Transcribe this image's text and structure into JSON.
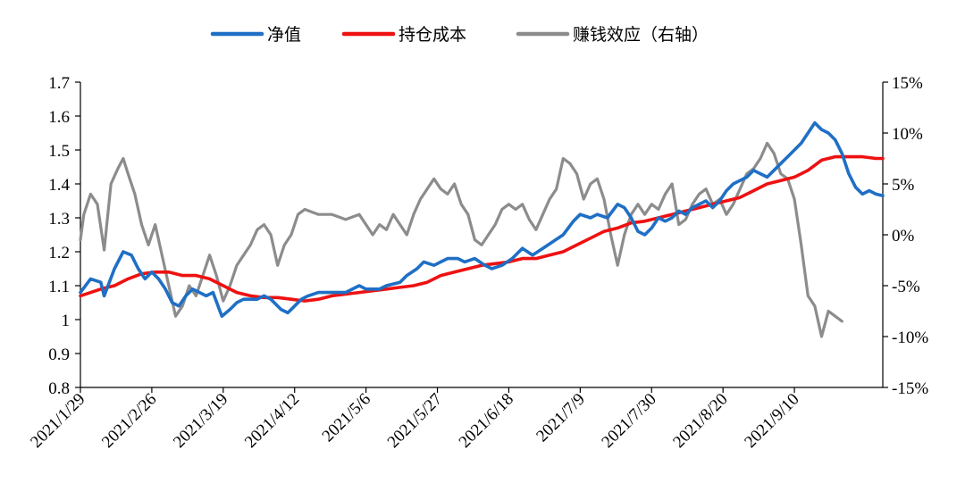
{
  "chart_data": {
    "type": "line",
    "title": "",
    "xlabel": "",
    "ylabel_left": "",
    "ylabel_right": "",
    "x_tick_labels": [
      "2021/1/29",
      "2021/2/26",
      "2021/3/19",
      "2021/4/12",
      "2021/5/6",
      "2021/5/27",
      "2021/6/18",
      "2021/7/9",
      "2021/7/30",
      "2021/8/20",
      "2021/9/10"
    ],
    "y_left": {
      "min": 0.8,
      "max": 1.7,
      "ticks": [
        "0.8",
        "0.9",
        "1",
        "1.1",
        "1.2",
        "1.3",
        "1.4",
        "1.5",
        "1.6",
        "1.7"
      ]
    },
    "y_right": {
      "min": -0.15,
      "max": 0.15,
      "ticks": [
        "-15%",
        "-10%",
        "-5%",
        "0%",
        "5%",
        "10%",
        "15%"
      ]
    },
    "legend_position": "top-center",
    "colors": {
      "nav": "#1f6fc5",
      "cost": "#ee1111",
      "effect": "#8c8c8c"
    },
    "series": [
      {
        "name": "净值",
        "axis": "left",
        "color": "#1f6fc5",
        "points": [
          [
            0,
            1.08
          ],
          [
            1.5,
            1.12
          ],
          [
            3,
            1.11
          ],
          [
            3.5,
            1.07
          ],
          [
            5,
            1.15
          ],
          [
            6.3,
            1.2
          ],
          [
            7.5,
            1.19
          ],
          [
            8.5,
            1.15
          ],
          [
            9.5,
            1.12
          ],
          [
            10.5,
            1.14
          ],
          [
            11.5,
            1.12
          ],
          [
            12.5,
            1.09
          ],
          [
            13.5,
            1.05
          ],
          [
            14.5,
            1.04
          ],
          [
            15.5,
            1.07
          ],
          [
            16.5,
            1.09
          ],
          [
            17.5,
            1.08
          ],
          [
            18.5,
            1.07
          ],
          [
            19.5,
            1.08
          ],
          [
            20.8,
            1.01
          ],
          [
            22,
            1.03
          ],
          [
            23,
            1.05
          ],
          [
            24,
            1.06
          ],
          [
            26,
            1.06
          ],
          [
            27,
            1.07
          ],
          [
            28,
            1.06
          ],
          [
            29.5,
            1.03
          ],
          [
            30.5,
            1.02
          ],
          [
            31.5,
            1.04
          ],
          [
            32.5,
            1.06
          ],
          [
            33.5,
            1.07
          ],
          [
            35,
            1.08
          ],
          [
            37,
            1.08
          ],
          [
            39,
            1.08
          ],
          [
            41,
            1.1
          ],
          [
            42,
            1.09
          ],
          [
            44,
            1.09
          ],
          [
            45,
            1.1
          ],
          [
            47,
            1.11
          ],
          [
            48,
            1.13
          ],
          [
            49.5,
            1.15
          ],
          [
            50.5,
            1.17
          ],
          [
            52,
            1.16
          ],
          [
            53,
            1.17
          ],
          [
            54,
            1.18
          ],
          [
            55.5,
            1.18
          ],
          [
            56.5,
            1.17
          ],
          [
            58,
            1.18
          ],
          [
            59.5,
            1.16
          ],
          [
            60.5,
            1.15
          ],
          [
            62,
            1.16
          ],
          [
            63.5,
            1.18
          ],
          [
            65,
            1.21
          ],
          [
            66.5,
            1.19
          ],
          [
            68,
            1.21
          ],
          [
            69.5,
            1.23
          ],
          [
            71,
            1.25
          ],
          [
            72.5,
            1.29
          ],
          [
            73.5,
            1.31
          ],
          [
            75,
            1.3
          ],
          [
            76,
            1.31
          ],
          [
            77.5,
            1.3
          ],
          [
            79,
            1.34
          ],
          [
            80,
            1.33
          ],
          [
            81,
            1.3
          ],
          [
            82,
            1.26
          ],
          [
            83,
            1.25
          ],
          [
            84,
            1.27
          ],
          [
            85,
            1.3
          ],
          [
            86,
            1.29
          ],
          [
            87,
            1.3
          ],
          [
            88,
            1.32
          ],
          [
            89,
            1.31
          ],
          [
            90,
            1.33
          ],
          [
            91,
            1.34
          ],
          [
            92,
            1.35
          ],
          [
            93,
            1.33
          ],
          [
            94,
            1.35
          ],
          [
            95,
            1.38
          ],
          [
            96,
            1.4
          ],
          [
            97,
            1.41
          ],
          [
            98,
            1.42
          ],
          [
            99,
            1.44
          ],
          [
            100,
            1.43
          ],
          [
            101,
            1.42
          ],
          [
            102,
            1.44
          ],
          [
            103,
            1.46
          ],
          [
            104,
            1.48
          ],
          [
            105,
            1.5
          ],
          [
            106,
            1.52
          ],
          [
            107,
            1.55
          ],
          [
            108,
            1.58
          ],
          [
            109,
            1.56
          ],
          [
            110,
            1.55
          ],
          [
            111,
            1.53
          ],
          [
            112,
            1.49
          ],
          [
            113,
            1.43
          ],
          [
            114,
            1.39
          ],
          [
            115,
            1.37
          ],
          [
            116,
            1.38
          ],
          [
            117,
            1.37
          ],
          [
            118,
            1.365
          ]
        ]
      },
      {
        "name": "持仓成本",
        "axis": "left",
        "color": "#ee1111",
        "points": [
          [
            0,
            1.07
          ],
          [
            3,
            1.09
          ],
          [
            5,
            1.1
          ],
          [
            7,
            1.12
          ],
          [
            9,
            1.135
          ],
          [
            11,
            1.14
          ],
          [
            13,
            1.14
          ],
          [
            15,
            1.13
          ],
          [
            17,
            1.13
          ],
          [
            19,
            1.12
          ],
          [
            21,
            1.1
          ],
          [
            23,
            1.08
          ],
          [
            25,
            1.07
          ],
          [
            27,
            1.065
          ],
          [
            29,
            1.065
          ],
          [
            31,
            1.06
          ],
          [
            33,
            1.055
          ],
          [
            35,
            1.06
          ],
          [
            37,
            1.07
          ],
          [
            39,
            1.075
          ],
          [
            41,
            1.08
          ],
          [
            43,
            1.085
          ],
          [
            45,
            1.09
          ],
          [
            47,
            1.095
          ],
          [
            49,
            1.1
          ],
          [
            51,
            1.11
          ],
          [
            53,
            1.13
          ],
          [
            55,
            1.14
          ],
          [
            57,
            1.15
          ],
          [
            59,
            1.16
          ],
          [
            61,
            1.165
          ],
          [
            63,
            1.17
          ],
          [
            65,
            1.18
          ],
          [
            67,
            1.18
          ],
          [
            69,
            1.19
          ],
          [
            71,
            1.2
          ],
          [
            73,
            1.22
          ],
          [
            75,
            1.24
          ],
          [
            77,
            1.26
          ],
          [
            79,
            1.27
          ],
          [
            81,
            1.285
          ],
          [
            83,
            1.29
          ],
          [
            85,
            1.3
          ],
          [
            87,
            1.31
          ],
          [
            89,
            1.32
          ],
          [
            91,
            1.33
          ],
          [
            93,
            1.34
          ],
          [
            95,
            1.35
          ],
          [
            97,
            1.36
          ],
          [
            99,
            1.38
          ],
          [
            101,
            1.4
          ],
          [
            103,
            1.41
          ],
          [
            105,
            1.42
          ],
          [
            107,
            1.44
          ],
          [
            109,
            1.47
          ],
          [
            111,
            1.48
          ],
          [
            113,
            1.48
          ],
          [
            115,
            1.48
          ],
          [
            117,
            1.475
          ],
          [
            118,
            1.475
          ]
        ]
      },
      {
        "name": "赚钱效应（右轴）",
        "axis": "right",
        "color": "#8c8c8c",
        "points": [
          [
            0,
            -0.005
          ],
          [
            0.5,
            0.02
          ],
          [
            1.5,
            0.04
          ],
          [
            2.5,
            0.03
          ],
          [
            3.5,
            -0.015
          ],
          [
            4.5,
            0.05
          ],
          [
            5.5,
            0.065
          ],
          [
            6.3,
            0.075
          ],
          [
            7,
            0.06
          ],
          [
            8,
            0.04
          ],
          [
            9,
            0.01
          ],
          [
            10,
            -0.01
          ],
          [
            11,
            0.01
          ],
          [
            12,
            -0.02
          ],
          [
            13,
            -0.05
          ],
          [
            14,
            -0.08
          ],
          [
            15,
            -0.07
          ],
          [
            16,
            -0.05
          ],
          [
            17,
            -0.06
          ],
          [
            18,
            -0.04
          ],
          [
            19,
            -0.02
          ],
          [
            20,
            -0.04
          ],
          [
            21,
            -0.065
          ],
          [
            22,
            -0.05
          ],
          [
            23,
            -0.03
          ],
          [
            24,
            -0.02
          ],
          [
            25,
            -0.01
          ],
          [
            26,
            0.005
          ],
          [
            27,
            0.01
          ],
          [
            28,
            0.0
          ],
          [
            29,
            -0.03
          ],
          [
            30,
            -0.01
          ],
          [
            31,
            0.0
          ],
          [
            32,
            0.02
          ],
          [
            33,
            0.025
          ],
          [
            35,
            0.02
          ],
          [
            37,
            0.02
          ],
          [
            39,
            0.015
          ],
          [
            41,
            0.02
          ],
          [
            43,
            0.0
          ],
          [
            44,
            0.01
          ],
          [
            45,
            0.005
          ],
          [
            46,
            0.02
          ],
          [
            47,
            0.01
          ],
          [
            48,
            0.0
          ],
          [
            49,
            0.02
          ],
          [
            50,
            0.035
          ],
          [
            51,
            0.045
          ],
          [
            52,
            0.055
          ],
          [
            53,
            0.045
          ],
          [
            54,
            0.04
          ],
          [
            55,
            0.05
          ],
          [
            56,
            0.03
          ],
          [
            57,
            0.02
          ],
          [
            58,
            -0.005
          ],
          [
            59,
            -0.01
          ],
          [
            60,
            0.0
          ],
          [
            61,
            0.01
          ],
          [
            62,
            0.025
          ],
          [
            63,
            0.03
          ],
          [
            64,
            0.025
          ],
          [
            65,
            0.03
          ],
          [
            66,
            0.015
          ],
          [
            67,
            0.005
          ],
          [
            68,
            0.02
          ],
          [
            69,
            0.035
          ],
          [
            70,
            0.045
          ],
          [
            71,
            0.075
          ],
          [
            72,
            0.07
          ],
          [
            73,
            0.06
          ],
          [
            74,
            0.035
          ],
          [
            75,
            0.05
          ],
          [
            76,
            0.055
          ],
          [
            77,
            0.035
          ],
          [
            78,
            0.0
          ],
          [
            79,
            -0.03
          ],
          [
            80,
            0.0
          ],
          [
            81,
            0.02
          ],
          [
            82,
            0.03
          ],
          [
            83,
            0.02
          ],
          [
            84,
            0.03
          ],
          [
            85,
            0.025
          ],
          [
            86,
            0.04
          ],
          [
            87,
            0.05
          ],
          [
            88,
            0.01
          ],
          [
            89,
            0.015
          ],
          [
            90,
            0.03
          ],
          [
            91,
            0.04
          ],
          [
            92,
            0.045
          ],
          [
            93,
            0.03
          ],
          [
            94,
            0.035
          ],
          [
            95,
            0.02
          ],
          [
            96,
            0.03
          ],
          [
            97,
            0.045
          ],
          [
            98,
            0.06
          ],
          [
            99,
            0.065
          ],
          [
            100,
            0.075
          ],
          [
            101,
            0.09
          ],
          [
            102,
            0.08
          ],
          [
            103,
            0.06
          ],
          [
            104,
            0.055
          ],
          [
            105,
            0.035
          ],
          [
            106,
            -0.01
          ],
          [
            107,
            -0.06
          ],
          [
            108,
            -0.07
          ],
          [
            109,
            -0.1
          ],
          [
            110,
            -0.075
          ],
          [
            111,
            -0.08
          ],
          [
            112,
            -0.085
          ]
        ]
      }
    ]
  }
}
